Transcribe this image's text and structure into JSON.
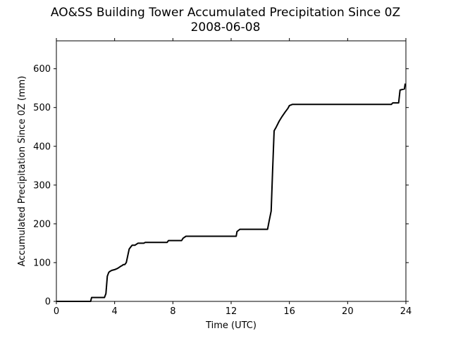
{
  "chart_data": {
    "type": "line",
    "title": "AO&SS Building Tower Accumulated Precipitation Since 0Z",
    "subtitle": "2008-06-08",
    "xlabel": "Time (UTC)",
    "ylabel": "Accumulated Precipitation Since 0Z (mm)",
    "xlim": [
      0,
      24
    ],
    "ylim": [
      0,
      672
    ],
    "xticks": [
      0,
      4,
      8,
      12,
      16,
      20,
      24
    ],
    "yticks": [
      0,
      100,
      200,
      300,
      400,
      500,
      600
    ],
    "grid": false,
    "line_color": "#000000",
    "series": [
      {
        "x": [
          0,
          2.35,
          2.42,
          3.3,
          3.4,
          3.5,
          3.6,
          3.7,
          3.8,
          4.0,
          4.2,
          4.4,
          4.5,
          4.6,
          4.7,
          4.8,
          5.0,
          5.1,
          5.2,
          5.4,
          5.6,
          5.8,
          6.0,
          6.1,
          6.2,
          7.6,
          7.7,
          8.6,
          8.7,
          8.9,
          12.35,
          12.4,
          12.6,
          14.5,
          14.6,
          14.75,
          14.85,
          14.95,
          15.1,
          15.3,
          15.5,
          15.7,
          15.9,
          16.0,
          16.2,
          23.0,
          23.1,
          23.5,
          23.6,
          23.9,
          23.95
        ],
        "y": [
          0,
          0,
          10,
          10,
          20,
          65,
          75,
          78,
          80,
          82,
          85,
          90,
          92,
          95,
          95,
          100,
          135,
          140,
          145,
          145,
          150,
          150,
          150,
          152,
          152,
          152,
          157,
          157,
          163,
          168,
          168,
          180,
          186,
          186,
          205,
          233,
          340,
          440,
          450,
          465,
          477,
          488,
          498,
          505,
          508,
          508,
          512,
          512,
          545,
          548,
          562
        ]
      }
    ]
  }
}
